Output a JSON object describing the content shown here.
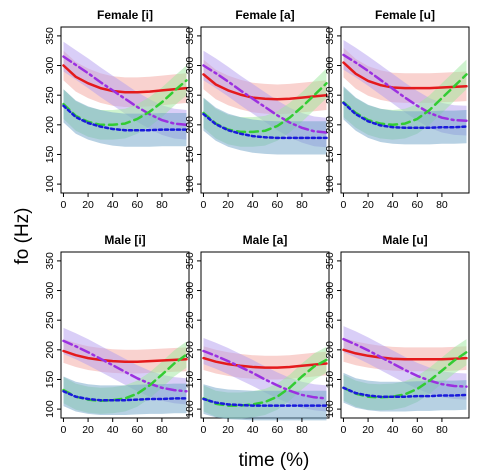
{
  "figure": {
    "xlabel": "time (%)",
    "ylabel": "fo (Hz)"
  },
  "colors": {
    "red": "#e41a1c",
    "purple": "#9b30e0",
    "green": "#33cc33",
    "blue": "#1a1adb",
    "band_red": "#f4a6a0",
    "band_purple": "#b49ef0",
    "band_green": "#9ee89e",
    "band_blue": "#6fa3c8"
  },
  "chart_data": [
    {
      "type": "line",
      "title": "Female [i]",
      "x": [
        0,
        10,
        20,
        30,
        40,
        50,
        60,
        70,
        80,
        90,
        100
      ],
      "xticks": [
        0,
        20,
        40,
        60,
        80
      ],
      "xlim": [
        -2,
        102
      ],
      "yticks": [
        100,
        150,
        200,
        250,
        300,
        350
      ],
      "ylim": [
        85,
        365
      ],
      "series": [
        {
          "color": "red",
          "dash": "solid",
          "band": 25,
          "values": [
            300,
            281,
            270,
            262,
            257,
            255,
            255,
            256,
            258,
            260,
            262
          ]
        },
        {
          "color": "purple",
          "dash": "dashdot",
          "band": 25,
          "values": [
            315,
            301,
            287,
            272,
            258,
            244,
            230,
            218,
            208,
            202,
            200
          ]
        },
        {
          "color": "green",
          "dash": "dashed",
          "band": 25,
          "values": [
            235,
            215,
            205,
            200,
            200,
            202,
            210,
            222,
            238,
            257,
            275
          ]
        },
        {
          "color": "blue",
          "dash": "dotted",
          "band": 28,
          "values": [
            232,
            213,
            203,
            197,
            193,
            191,
            191,
            191,
            192,
            192,
            192
          ]
        }
      ]
    },
    {
      "type": "line",
      "title": "Female [a]",
      "x": [
        0,
        10,
        20,
        30,
        40,
        50,
        60,
        70,
        80,
        90,
        100
      ],
      "xticks": [
        0,
        20,
        40,
        60,
        80
      ],
      "xlim": [
        -2,
        102
      ],
      "yticks": [
        100,
        150,
        200,
        250,
        300,
        350
      ],
      "ylim": [
        85,
        365
      ],
      "series": [
        {
          "color": "red",
          "dash": "solid",
          "band": 25,
          "values": [
            285,
            268,
            258,
            251,
            246,
            244,
            243,
            244,
            246,
            248,
            250
          ]
        },
        {
          "color": "purple",
          "dash": "dashdot",
          "band": 25,
          "values": [
            300,
            287,
            273,
            258,
            244,
            230,
            216,
            204,
            195,
            189,
            187
          ]
        },
        {
          "color": "green",
          "dash": "dashed",
          "band": 25,
          "values": [
            220,
            202,
            192,
            188,
            188,
            190,
            198,
            212,
            230,
            250,
            270
          ]
        },
        {
          "color": "blue",
          "dash": "dotted",
          "band": 28,
          "values": [
            218,
            201,
            191,
            185,
            181,
            179,
            178,
            178,
            178,
            178,
            178
          ]
        }
      ]
    },
    {
      "type": "line",
      "title": "Female [u]",
      "x": [
        0,
        10,
        20,
        30,
        40,
        50,
        60,
        70,
        80,
        90,
        100
      ],
      "xticks": [
        0,
        20,
        40,
        60,
        80
      ],
      "xlim": [
        -2,
        102
      ],
      "yticks": [
        100,
        150,
        200,
        250,
        300,
        350
      ],
      "ylim": [
        85,
        365
      ],
      "series": [
        {
          "color": "red",
          "dash": "solid",
          "band": 25,
          "values": [
            305,
            286,
            274,
            267,
            263,
            262,
            262,
            262,
            263,
            264,
            265
          ]
        },
        {
          "color": "purple",
          "dash": "dashdot",
          "band": 25,
          "values": [
            318,
            305,
            291,
            276,
            261,
            246,
            232,
            220,
            212,
            208,
            207
          ]
        },
        {
          "color": "green",
          "dash": "dashed",
          "band": 25,
          "values": [
            238,
            220,
            208,
            202,
            200,
            202,
            210,
            225,
            245,
            265,
            285
          ]
        },
        {
          "color": "blue",
          "dash": "dotted",
          "band": 28,
          "values": [
            237,
            218,
            206,
            199,
            196,
            195,
            195,
            195,
            196,
            196,
            197
          ]
        }
      ]
    },
    {
      "type": "line",
      "title": "Male [i]",
      "x": [
        0,
        10,
        20,
        30,
        40,
        50,
        60,
        70,
        80,
        90,
        100
      ],
      "xticks": [
        0,
        20,
        40,
        60,
        80
      ],
      "xlim": [
        -2,
        102
      ],
      "yticks": [
        100,
        150,
        200,
        250,
        300,
        350
      ],
      "ylim": [
        85,
        365
      ],
      "series": [
        {
          "color": "red",
          "dash": "solid",
          "band": 20,
          "values": [
            198,
            191,
            186,
            183,
            181,
            180,
            180,
            181,
            182,
            183,
            184
          ]
        },
        {
          "color": "purple",
          "dash": "dashdot",
          "band": 22,
          "values": [
            215,
            206,
            196,
            185,
            174,
            163,
            152,
            143,
            136,
            132,
            130
          ]
        },
        {
          "color": "green",
          "dash": "dashed",
          "band": 22,
          "values": [
            132,
            121,
            116,
            114,
            115,
            118,
            126,
            140,
            158,
            177,
            192
          ]
        },
        {
          "color": "blue",
          "dash": "dotted",
          "band": 25,
          "values": [
            130,
            121,
            117,
            115,
            115,
            115,
            116,
            117,
            117,
            118,
            118
          ]
        }
      ]
    },
    {
      "type": "line",
      "title": "Male [a]",
      "x": [
        0,
        10,
        20,
        30,
        40,
        50,
        60,
        70,
        80,
        90,
        100
      ],
      "xticks": [
        0,
        20,
        40,
        60,
        80
      ],
      "xlim": [
        -2,
        102
      ],
      "yticks": [
        100,
        150,
        200,
        250,
        300,
        350
      ],
      "ylim": [
        85,
        365
      ],
      "series": [
        {
          "color": "red",
          "dash": "solid",
          "band": 20,
          "values": [
            186,
            180,
            176,
            173,
            171,
            170,
            170,
            171,
            173,
            175,
            177
          ]
        },
        {
          "color": "purple",
          "dash": "dashdot",
          "band": 22,
          "values": [
            198,
            190,
            181,
            171,
            161,
            150,
            140,
            131,
            124,
            120,
            118
          ]
        },
        {
          "color": "green",
          "dash": "dashed",
          "band": 22,
          "values": [
            118,
            109,
            106,
            106,
            108,
            112,
            121,
            136,
            155,
            172,
            183
          ]
        },
        {
          "color": "blue",
          "dash": "dotted",
          "band": 25,
          "values": [
            117,
            111,
            108,
            107,
            106,
            106,
            106,
            106,
            106,
            106,
            106
          ]
        }
      ]
    },
    {
      "type": "line",
      "title": "Male [u]",
      "x": [
        0,
        10,
        20,
        30,
        40,
        50,
        60,
        70,
        80,
        90,
        100
      ],
      "xticks": [
        0,
        20,
        40,
        60,
        80
      ],
      "xlim": [
        -2,
        102
      ],
      "yticks": [
        100,
        150,
        200,
        250,
        300,
        350
      ],
      "ylim": [
        85,
        365
      ],
      "series": [
        {
          "color": "red",
          "dash": "solid",
          "band": 20,
          "values": [
            200,
            194,
            190,
            187,
            185,
            184,
            184,
            184,
            184,
            185,
            186
          ]
        },
        {
          "color": "purple",
          "dash": "dashdot",
          "band": 22,
          "values": [
            218,
            209,
            199,
            188,
            177,
            166,
            156,
            148,
            142,
            139,
            138
          ]
        },
        {
          "color": "green",
          "dash": "dashed",
          "band": 22,
          "values": [
            136,
            126,
            121,
            120,
            121,
            125,
            134,
            148,
            165,
            182,
            196
          ]
        },
        {
          "color": "blue",
          "dash": "dotted",
          "band": 25,
          "values": [
            136,
            127,
            123,
            121,
            121,
            121,
            122,
            122,
            123,
            123,
            124
          ]
        }
      ]
    }
  ]
}
